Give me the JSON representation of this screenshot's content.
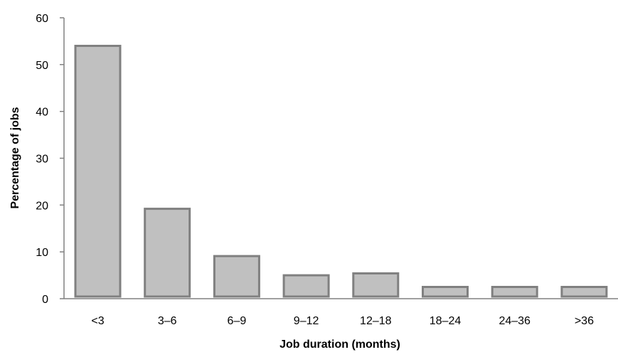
{
  "chart_data": {
    "type": "bar",
    "title": "",
    "xlabel": "Job duration (months)",
    "ylabel": "Percentage of jobs",
    "categories": [
      "<3",
      "3–6",
      "6–9",
      "9–12",
      "12–18",
      "18–24",
      "24–36",
      ">36"
    ],
    "values": [
      54,
      19.2,
      9.1,
      5.0,
      5.4,
      2.5,
      2.5,
      2.5
    ],
    "ylim": [
      0,
      60
    ],
    "yticks": [
      "0",
      "10",
      "20",
      "30",
      "40",
      "50",
      "60"
    ],
    "grid": false,
    "colors": {
      "bar_fill": "#c0c0c0",
      "bar_stroke": "#808080",
      "axis": "#808080"
    }
  }
}
